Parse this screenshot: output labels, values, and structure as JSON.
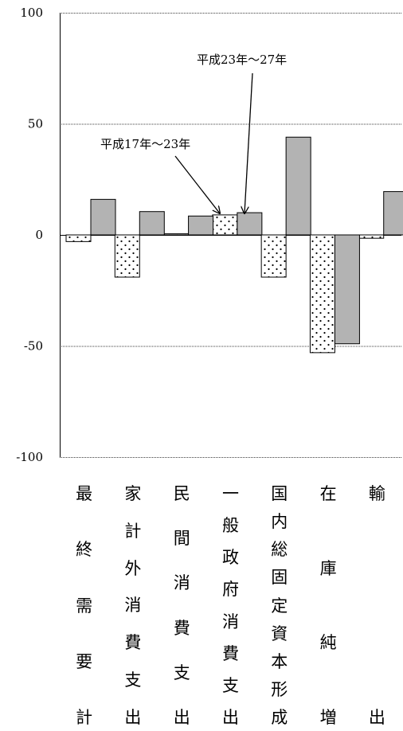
{
  "chart_data": {
    "type": "bar",
    "ylim": [
      -100,
      100
    ],
    "yticks": [
      100,
      50,
      0,
      -50,
      -100
    ],
    "categories": [
      "最終需要計",
      "家計外消費支出",
      "民間消費支出",
      "一般政府消費支出",
      "国内総固定資本形成",
      "在庫純増",
      "輸出"
    ],
    "series": [
      {
        "name": "平成17年～23年",
        "pattern": "dots",
        "values": [
          -3,
          -19,
          0.5,
          9,
          -19,
          -53,
          -1.5
        ]
      },
      {
        "name": "平成23年～27年",
        "color": "#b3b3b3",
        "values": [
          16,
          10.5,
          8.5,
          10,
          44,
          -49,
          19.5
        ]
      }
    ],
    "annotations": [
      "平成17年～23年",
      "平成23年～27年"
    ],
    "grid": true
  }
}
